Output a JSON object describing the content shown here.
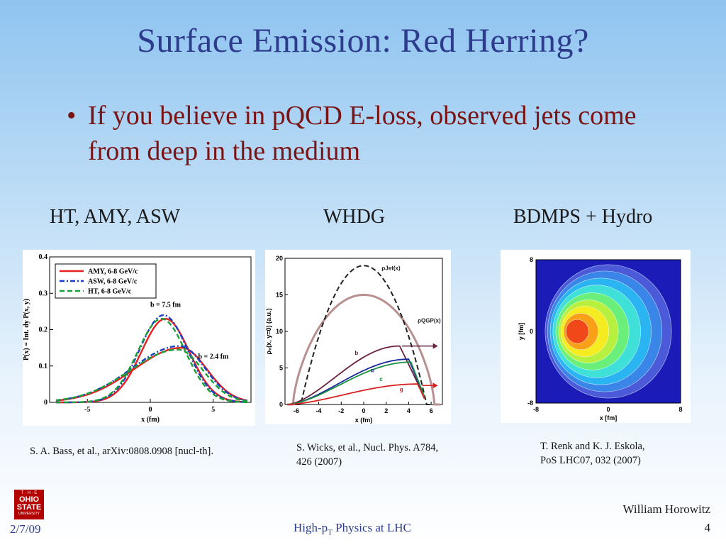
{
  "slide": {
    "title": "Surface Emission: Red Herring?",
    "bullet": "If you believe in pQCD E-loss, observed jets come from deep in the medium",
    "bullet_symbol": "•"
  },
  "columns": [
    {
      "header": "HT, AMY, ASW",
      "citation": "S. A. Bass, et al., arXiv:0808.0908 [nucl-th]."
    },
    {
      "header": "WHDG",
      "citation_line1": "S. Wicks, et al., Nucl. Phys. A784,",
      "citation_line2": "426 (2007)"
    },
    {
      "header": "BDMPS + Hydro",
      "citation_line1": "T. Renk and K. J. Eskola,",
      "citation_line2": "PoS LHC07, 032 (2007)"
    }
  ],
  "chart_data": [
    {
      "type": "line",
      "xlabel": "x (fm)",
      "ylabel": "P(x) = Int. dy P(x, y)",
      "xlim": [
        -8,
        8
      ],
      "ylim": [
        0,
        0.4
      ],
      "xticks": [
        "-5",
        "0",
        "5"
      ],
      "yticks": [
        "0",
        "0.1",
        "0.2",
        "0.3",
        "0.4"
      ],
      "legend": [
        "AMY, 6-8 GeV/c",
        "ASW, 6-8 GeV/c",
        "HT, 6-8 GeV/c"
      ],
      "colors": [
        "#e8201e",
        "#1a3fc4",
        "#1aa03a"
      ],
      "annotations": [
        "b = 7.5 fm",
        "b = 2.4 fm"
      ],
      "series": [
        {
          "name": "AMY, 6-8 GeV/c",
          "peak_b7.5": 0.23,
          "peak_b2.4": 0.15
        },
        {
          "name": "ASW, 6-8 GeV/c",
          "peak_b7.5": 0.24,
          "peak_b2.4": 0.155
        },
        {
          "name": "HT, 6-8 GeV/c",
          "peak_b7.5": 0.23,
          "peak_b2.4": 0.145
        }
      ]
    },
    {
      "type": "line",
      "xlabel": "x (fm)",
      "ylabel": "ρ₀(x, y=0) (a.u.)",
      "xlim": [
        -7,
        7
      ],
      "ylim": [
        0,
        20
      ],
      "xticks": [
        "-6",
        "-4",
        "-2",
        "0",
        "2",
        "4",
        "6"
      ],
      "yticks": [
        "0",
        "5",
        "10",
        "15",
        "20"
      ],
      "labels": {
        "jet": "ρJet(x)",
        "qgp": "ρQGP(x)",
        "b": "b",
        "u": "u",
        "c": "c",
        "g": "g"
      },
      "series": [
        {
          "name": "ρJet(x)",
          "peak": 19,
          "color": "#222222"
        },
        {
          "name": "ρQGP(x)",
          "peak": 15,
          "color": "#b89090"
        },
        {
          "name": "b",
          "peak": 8,
          "color": "#6a2040"
        },
        {
          "name": "u",
          "peak": 6.2,
          "color": "#1a2a9c"
        },
        {
          "name": "c",
          "peak": 5.8,
          "color": "#1a9040"
        },
        {
          "name": "g",
          "peak": 2.8,
          "color": "#d82020"
        }
      ]
    },
    {
      "type": "heatmap",
      "xlabel": "x [fm]",
      "ylabel": "y [fm]",
      "xlim": [
        -8,
        8
      ],
      "ylim": [
        -8,
        8
      ],
      "xticks": [
        "-8",
        "0",
        "8"
      ],
      "yticks": [
        "8",
        "0",
        "-8"
      ]
    }
  ],
  "footer": {
    "date": "2/7/09",
    "title_main": "High-p",
    "title_sub": "T",
    "title_rest": " Physics at LHC",
    "author": "William Horowitz",
    "page": "4"
  },
  "logo": {
    "line1": "T · H · E",
    "line2": "OHIO",
    "line3": "STATE",
    "line4": "UNIVERSITY"
  }
}
